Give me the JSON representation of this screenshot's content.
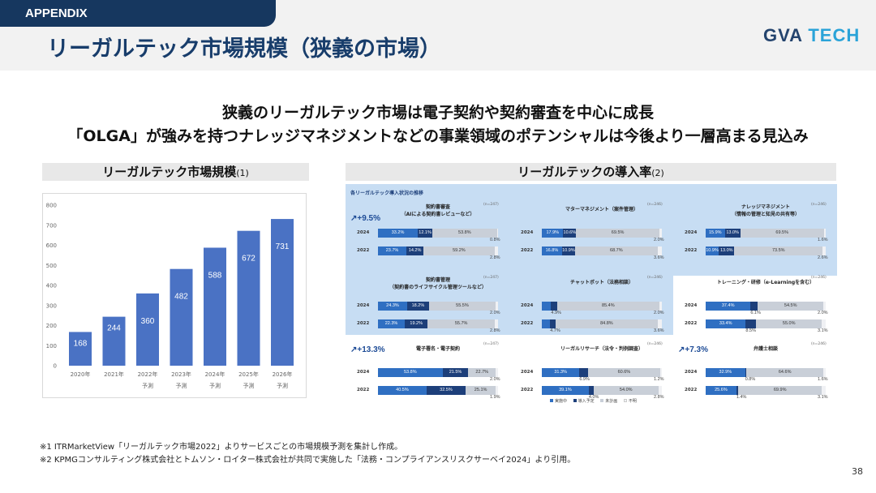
{
  "header": {
    "tag": "APPENDIX",
    "title": "リーガルテック市場規模（狭義の市場）",
    "logo_main": "GVA",
    "logo_accent": " TECH"
  },
  "lead": {
    "line1": "狭義のリーガルテック市場は電子契約や契約審査を中心に成長",
    "line2": "「OLGA」が強みを持つナレッジマネジメントなどの事業領域のポテンシャルは今後より一層高まる見込み"
  },
  "left_section": {
    "title": "リーガルテック市場規模",
    "note": "(1)"
  },
  "right_section": {
    "title": "リーガルテックの導入率",
    "note": "(2)"
  },
  "chart_data": {
    "type": "bar",
    "categories": [
      "2020年",
      "2021年",
      "2022年",
      "2023年",
      "2024年",
      "2025年",
      "2026年"
    ],
    "sublabels": [
      "",
      "",
      "予測",
      "予測",
      "予測",
      "予測",
      "予測"
    ],
    "values": [
      168,
      244,
      360,
      482,
      588,
      672,
      731
    ],
    "ylim": [
      0,
      800
    ],
    "yticks": [
      0,
      100,
      200,
      300,
      400,
      500,
      600,
      700,
      800
    ],
    "grid": false,
    "color": "#4a72c4"
  },
  "adoption": {
    "heading": "各リーガルテック導入状況の推移",
    "legend": [
      "実施中",
      "導入予定",
      "未計画",
      "不明"
    ],
    "panels": [
      {
        "title": "契約書審査",
        "subtitle": "（AIによる契約書レビューなど）",
        "n": "(n=247)",
        "growth": "+9.5%",
        "rows": [
          {
            "year": "2024",
            "a": "33.2%",
            "b": "12.1%",
            "c": "53.8%",
            "d": "0.8%",
            "av": 33.2,
            "bv": 12.1,
            "cv": 53.8,
            "dv": 0.8
          },
          {
            "year": "2022",
            "a": "23.7%",
            "b": "14.2%",
            "c": "59.2%",
            "d": "2.8%",
            "av": 23.7,
            "bv": 14.2,
            "cv": 59.2,
            "dv": 2.8
          }
        ]
      },
      {
        "title": "マターマネジメント（案件管理）",
        "subtitle": "",
        "n": "(n=246)",
        "growth": "",
        "rows": [
          {
            "year": "2024",
            "a": "17.9%",
            "b": "10.6%",
            "c": "69.5%",
            "d": "2.0%",
            "av": 17.9,
            "bv": 10.6,
            "cv": 69.5,
            "dv": 2.0
          },
          {
            "year": "2022",
            "a": "16.8%",
            "b": "10.9%",
            "c": "68.7%",
            "d": "3.6%",
            "av": 16.8,
            "bv": 10.9,
            "cv": 68.7,
            "dv": 3.6
          }
        ]
      },
      {
        "title": "ナレッジマネジメント",
        "subtitle": "（情報の管理と知見の共有等）",
        "n": "(n=246)",
        "growth": "",
        "rows": [
          {
            "year": "2024",
            "a": "15.9%",
            "b": "13.0%",
            "c": "69.5%",
            "d": "1.6%",
            "av": 15.9,
            "bv": 13.0,
            "cv": 69.5,
            "dv": 1.6
          },
          {
            "year": "2022",
            "a": "10.9%",
            "b": "13.0%",
            "c": "73.5%",
            "d": "2.6%",
            "av": 10.9,
            "bv": 13.0,
            "cv": 73.5,
            "dv": 2.6
          }
        ]
      },
      {
        "title": "契約書管理",
        "subtitle": "（契約書のライフサイクル管理ツールなど）",
        "n": "(n=247)",
        "growth": "",
        "rows": [
          {
            "year": "2024",
            "a": "24.3%",
            "b": "18.2%",
            "c": "55.5%",
            "d": "2.0%",
            "av": 24.3,
            "bv": 18.2,
            "cv": 55.5,
            "dv": 2.0
          },
          {
            "year": "2022",
            "a": "22.3%",
            "b": "19.2%",
            "c": "55.7%",
            "d": "2.8%",
            "av": 22.3,
            "bv": 19.2,
            "cv": 55.7,
            "dv": 2.8
          }
        ]
      },
      {
        "title": "チャットボット（法務相談）",
        "subtitle": "",
        "n": "(n=246)",
        "growth": "",
        "rows": [
          {
            "year": "2024",
            "a": "7.7%",
            "b": "4.9%",
            "c": "85.4%",
            "d": "2.0%",
            "av": 7.7,
            "bv": 4.9,
            "cv": 85.4,
            "dv": 2.0
          },
          {
            "year": "2022",
            "a": "6.9%",
            "b": "4.7%",
            "c": "84.8%",
            "d": "3.6%",
            "av": 6.9,
            "bv": 4.7,
            "cv": 84.8,
            "dv": 3.6
          }
        ]
      },
      {
        "title": "トレーニング・研修（e-Learningを含む）",
        "subtitle": "",
        "n": "(n=246)",
        "growth": "",
        "rows": [
          {
            "year": "2024",
            "a": "37.4%",
            "b": "6.1%",
            "c": "54.5%",
            "d": "2.0%",
            "av": 37.4,
            "bv": 6.1,
            "cv": 54.5,
            "dv": 2.0
          },
          {
            "year": "2022",
            "a": "33.4%",
            "b": "8.5%",
            "c": "55.0%",
            "d": "3.1%",
            "av": 33.4,
            "bv": 8.5,
            "cv": 55.0,
            "dv": 3.1
          }
        ]
      },
      {
        "title": "電子署名・電子契約",
        "subtitle": "",
        "n": "(n=247)",
        "growth": "+13.3%",
        "rows": [
          {
            "year": "2024",
            "a": "53.8%",
            "b": "21.5%",
            "c": "22.7%",
            "d": "2.0%",
            "av": 53.8,
            "bv": 21.5,
            "cv": 22.7,
            "dv": 2.0
          },
          {
            "year": "2022",
            "a": "40.5%",
            "b": "32.5%",
            "c": "25.1%",
            "d": "1.9%",
            "av": 40.5,
            "bv": 32.5,
            "cv": 25.1,
            "dv": 1.9
          }
        ]
      },
      {
        "title": "リーガルリサーチ（法令・判例調査）",
        "subtitle": "",
        "n": "(n=246)",
        "growth": "",
        "rows": [
          {
            "year": "2024",
            "a": "31.3%",
            "b": "6.9%",
            "c": "60.6%",
            "d": "1.2%",
            "av": 31.3,
            "bv": 6.9,
            "cv": 60.6,
            "dv": 1.2
          },
          {
            "year": "2022",
            "a": "39.1%",
            "b": "4.0%",
            "c": "54.0%",
            "d": "2.8%",
            "av": 39.1,
            "bv": 4.0,
            "cv": 54.0,
            "dv": 2.8
          }
        ]
      },
      {
        "title": "弁護士相談",
        "subtitle": "",
        "n": "(n=246)",
        "growth": "+7.3%",
        "rows": [
          {
            "year": "2024",
            "a": "32.9%",
            "b": "0.8%",
            "c": "64.6%",
            "d": "1.6%",
            "av": 32.9,
            "bv": 0.8,
            "cv": 64.6,
            "dv": 1.6
          },
          {
            "year": "2022",
            "a": "25.6%",
            "b": "1.4%",
            "c": "69.9%",
            "d": "3.1%",
            "av": 25.6,
            "bv": 1.4,
            "cv": 69.9,
            "dv": 3.1
          }
        ]
      }
    ]
  },
  "footnotes": [
    "※1  ITRMarketView「リーガルテック市場2022」よりサービスごとの市場規模予測を集計し作成。",
    "※2  KPMGコンサルティング株式会社とトムソン・ロイター株式会社が共同で実施した「法務・コンプライアンスリスクサーベイ2024」より引用。"
  ],
  "page_number": "38"
}
